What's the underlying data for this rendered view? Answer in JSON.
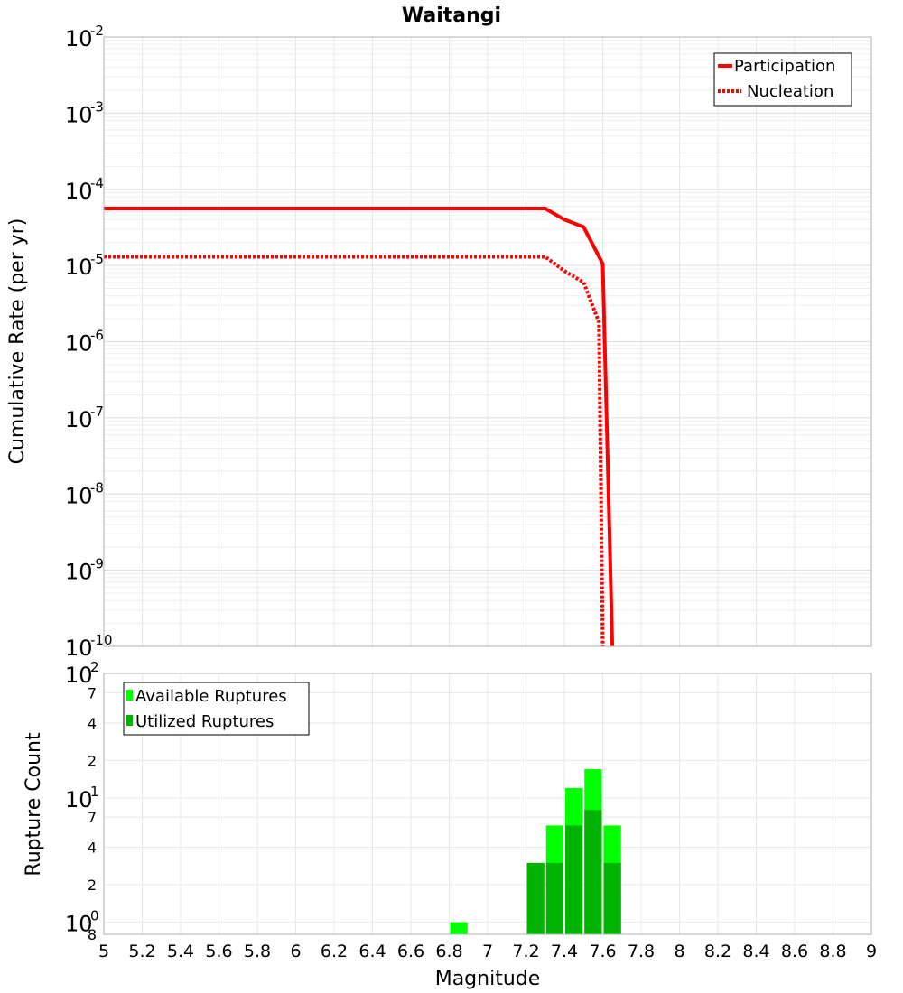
{
  "chart_data": [
    {
      "type": "line",
      "title": "Waitangi",
      "xlabel": "",
      "ylabel": "Cumulative Rate (per yr)",
      "yscale": "log",
      "xlim": [
        5,
        9
      ],
      "ylim": [
        1e-10,
        0.01
      ],
      "ytick_labels": [
        {
          "base": "10",
          "exp": "-2"
        },
        {
          "base": "10",
          "exp": "-3"
        },
        {
          "base": "10",
          "exp": "-4"
        },
        {
          "base": "10",
          "exp": "-5"
        },
        {
          "base": "10",
          "exp": "-6"
        },
        {
          "base": "10",
          "exp": "-7"
        },
        {
          "base": "10",
          "exp": "-8"
        },
        {
          "base": "10",
          "exp": "-9"
        },
        {
          "base": "10",
          "exp": "-10"
        }
      ],
      "legend_position": "top-right",
      "series": [
        {
          "name": "Participation",
          "color": "#ff0000",
          "style": "solid",
          "x": [
            5.0,
            7.3,
            7.4,
            7.5,
            7.6,
            7.65
          ],
          "y": [
            5.6e-05,
            5.6e-05,
            4e-05,
            3.2e-05,
            1.05e-05,
            1e-10
          ]
        },
        {
          "name": "Nucleation",
          "color": "#ff0000",
          "style": "dotted",
          "x": [
            5.0,
            7.3,
            7.4,
            7.5,
            7.58,
            7.6
          ],
          "y": [
            1.3e-05,
            1.3e-05,
            8.5e-06,
            6e-06,
            1.8e-06,
            1e-10
          ]
        }
      ]
    },
    {
      "type": "bar",
      "title": "",
      "xlabel": "Magnitude",
      "ylabel": "Rupture Count",
      "yscale": "log",
      "xlim": [
        5,
        9
      ],
      "ylim": [
        0.8,
        100
      ],
      "xticks": [
        "5",
        "5.2",
        "5.4",
        "5.6",
        "5.8",
        "6",
        "6.2",
        "6.4",
        "6.6",
        "6.8",
        "7",
        "7.2",
        "7.4",
        "7.6",
        "7.8",
        "8",
        "8.2",
        "8.4",
        "8.6",
        "8.8",
        "9"
      ],
      "ytick_labels": [
        {
          "base": "10",
          "exp": "2",
          "value": 100
        },
        {
          "base": "10",
          "exp": "1",
          "value": 10
        },
        {
          "base": "10",
          "exp": "0",
          "value": 1
        }
      ],
      "minor_tick_labels": [
        {
          "label": "7",
          "value": 70
        },
        {
          "label": "4",
          "value": 40
        },
        {
          "label": "2",
          "value": 20
        },
        {
          "label": "7",
          "value": 7
        },
        {
          "label": "4",
          "value": 4
        },
        {
          "label": "2",
          "value": 2
        },
        {
          "label": "8",
          "value": 0.8
        }
      ],
      "legend_position": "top-left",
      "bin_width": 0.1,
      "series": [
        {
          "name": "Available Ruptures",
          "color": "#00ff00",
          "centers": [
            6.85,
            7.25,
            7.35,
            7.45,
            7.55,
            7.65
          ],
          "values": [
            1,
            3,
            6,
            12,
            17,
            6
          ]
        },
        {
          "name": "Utilized Ruptures",
          "color": "#00b300",
          "centers": [
            6.85,
            7.25,
            7.35,
            7.45,
            7.55,
            7.65
          ],
          "values": [
            0,
            3,
            3,
            6,
            8,
            3
          ]
        }
      ]
    }
  ]
}
